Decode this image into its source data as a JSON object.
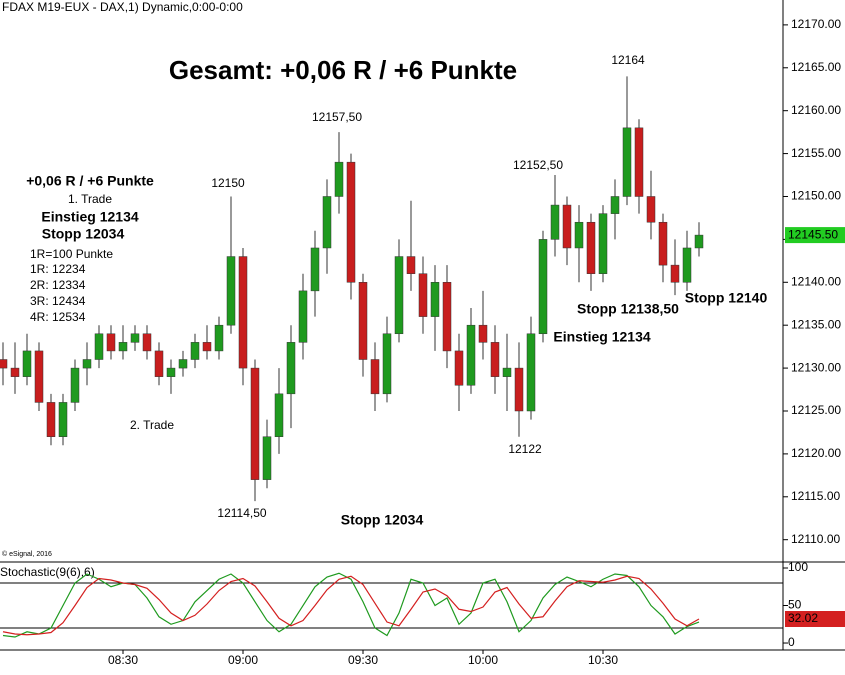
{
  "chart_data": [
    {
      "type": "candlestick",
      "header": "FDAX M19-EUX - DAX,1) Dynamic,0:00-0:00",
      "title": "Gesamt: +0,06 R / +6 Punkte",
      "credit": "© eSignal, 2016",
      "up_color": "#1f9a1f",
      "down_color": "#c81e1e",
      "wick_color": "#333333",
      "x": [
        480,
        483,
        486,
        489,
        492,
        495,
        498,
        501,
        504,
        507,
        510,
        513,
        516,
        519,
        522,
        525,
        528,
        531,
        534,
        537,
        540,
        543,
        546,
        549,
        552,
        555,
        558,
        561,
        564,
        567,
        570,
        573,
        576,
        579,
        582,
        585,
        588,
        591,
        594,
        597,
        600,
        603,
        606,
        609,
        612,
        615,
        618,
        621,
        624,
        627,
        630,
        633,
        636,
        639,
        642,
        645,
        648,
        651,
        654
      ],
      "open": [
        12131,
        12130,
        12129,
        12132,
        12126,
        12122,
        12126,
        12130,
        12131,
        12134,
        12132,
        12133,
        12134,
        12132,
        12129,
        12130,
        12131,
        12133,
        12132,
        12135,
        12143,
        12130,
        12117,
        12122,
        12127,
        12133,
        12139,
        12144,
        12150,
        12154,
        12140,
        12131,
        12127,
        12134,
        12143,
        12141,
        12136,
        12140,
        12132,
        12128,
        12135,
        12133,
        12129,
        12130,
        12125,
        12134,
        12145,
        12149,
        12144,
        12147,
        12141,
        12148,
        12150,
        12158,
        12150,
        12147,
        12142,
        12140,
        12144
      ],
      "high": [
        12133,
        12133,
        12134,
        12133,
        12127,
        12127,
        12131,
        12133,
        12135,
        12135,
        12135,
        12135,
        12135,
        12133,
        12131,
        12132,
        12134,
        12135,
        12136,
        12150,
        12144,
        12131,
        12124,
        12130,
        12135,
        12141,
        12146,
        12152,
        12157.5,
        12155,
        12141,
        12133,
        12136,
        12145,
        12149.5,
        12143,
        12142,
        12142,
        12134,
        12137,
        12139,
        12135,
        12134,
        12133,
        12136,
        12146,
        12152.5,
        12150,
        12149,
        12148,
        12149,
        12152,
        12164,
        12159,
        12153,
        12148,
        12145,
        12146,
        12147
      ],
      "low": [
        12128,
        12127,
        12128,
        12125,
        12121,
        12121,
        12125,
        12128,
        12130,
        12131,
        12131,
        12132,
        12131,
        12128,
        12127,
        12129,
        12130,
        12131,
        12131,
        12134,
        12128,
        12114.5,
        12116,
        12120,
        12123,
        12131,
        12136,
        12141,
        12148,
        12138,
        12129,
        12125,
        12126,
        12133,
        12139,
        12134,
        12132,
        12130,
        12125,
        12127,
        12131,
        12127,
        12125,
        12122,
        12124,
        12133,
        12143,
        12142,
        12140,
        12139,
        12140,
        12145,
        12149,
        12148,
        12145,
        12140,
        12138.5,
        12139,
        12143
      ],
      "close": [
        12130,
        12129,
        12132,
        12126,
        12122,
        12126,
        12130,
        12131,
        12134,
        12132,
        12133,
        12134,
        12132,
        12129,
        12130,
        12131,
        12133,
        12132,
        12135,
        12143,
        12130,
        12117,
        12122,
        12127,
        12133,
        12139,
        12144,
        12150,
        12154,
        12140,
        12131,
        12127,
        12134,
        12143,
        12141,
        12136,
        12140,
        12132,
        12128,
        12135,
        12133,
        12129,
        12130,
        12125,
        12134,
        12145,
        12149,
        12144,
        12147,
        12141,
        12148,
        12150,
        12158,
        12150,
        12147,
        12142,
        12140,
        12144,
        12145.5
      ],
      "last_price": {
        "value": 12145.5,
        "label": "12145.50"
      },
      "last_price_color": "#22cc22",
      "xlim": [
        479.25,
        675
      ],
      "ylim": [
        12107.4,
        12172.9
      ],
      "yticks": [
        {
          "value": 12110,
          "label": "12110.00"
        },
        {
          "value": 12115,
          "label": "12115.00"
        },
        {
          "value": 12120,
          "label": "12120.00"
        },
        {
          "value": 12125,
          "label": "12125.00"
        },
        {
          "value": 12130,
          "label": "12130.00"
        },
        {
          "value": 12135,
          "label": "12135.00"
        },
        {
          "value": 12140,
          "label": "12140.00"
        },
        {
          "value": 12145,
          "label": "12145.00"
        },
        {
          "value": 12150,
          "label": "12150.00"
        },
        {
          "value": 12155,
          "label": "12155.00"
        },
        {
          "value": 12160,
          "label": "12160.00"
        },
        {
          "value": 12165,
          "label": "12165.00"
        },
        {
          "value": 12170,
          "label": "12170.00"
        }
      ],
      "annotations": [
        {
          "text": "12164",
          "color": "#000000"
        },
        {
          "text": "12157,50",
          "color": "#000000"
        },
        {
          "text": "12150",
          "color": "#000000"
        },
        {
          "text": "12152,50",
          "color": "#000000"
        },
        {
          "text": "+0,06 R / +6 Punkte",
          "color": "#000000"
        },
        {
          "text": "1. Trade",
          "color": "#000000"
        },
        {
          "text": "Einstieg 12134",
          "color": "#1f8a1f"
        },
        {
          "text": "Stopp 12034",
          "color": "#1f8a1f"
        },
        {
          "text": "1R=100 Punkte",
          "color": "#000000"
        },
        {
          "text": "1R: 12234",
          "color": "#000000"
        },
        {
          "text": "2R: 12334",
          "color": "#000000"
        },
        {
          "text": "3R: 12434",
          "color": "#000000"
        },
        {
          "text": "4R: 12534",
          "color": "#000000"
        },
        {
          "text": "2. Trade",
          "color": "#000000"
        },
        {
          "text": "12114,50",
          "color": "#000000"
        },
        {
          "text": "Stopp 12034",
          "color": "#1f8a1f"
        },
        {
          "text": "12122",
          "color": "#000000"
        },
        {
          "text": "Stopp 12138,50",
          "color": "#1f8a1f"
        },
        {
          "text": "Einstieg 12134",
          "color": "#1f8a1f"
        },
        {
          "text": "Stopp 12140",
          "color": "#1f8a1f"
        }
      ]
    },
    {
      "type": "line",
      "title": "Stochastic(9(6),6)",
      "title_color": "#1f9a1f",
      "x": [
        480,
        483,
        486,
        489,
        492,
        495,
        498,
        501,
        504,
        507,
        510,
        513,
        516,
        519,
        522,
        525,
        528,
        531,
        534,
        537,
        540,
        543,
        546,
        549,
        552,
        555,
        558,
        561,
        564,
        567,
        570,
        573,
        576,
        579,
        582,
        585,
        588,
        591,
        594,
        597,
        600,
        603,
        606,
        609,
        612,
        615,
        618,
        621,
        624,
        627,
        630,
        633,
        636,
        639,
        642,
        645,
        648,
        651,
        654
      ],
      "series": [
        {
          "color": "#1f9a1f",
          "values": [
            10,
            8,
            15,
            12,
            20,
            50,
            80,
            92,
            85,
            75,
            80,
            78,
            60,
            35,
            25,
            30,
            55,
            70,
            85,
            92,
            80,
            55,
            30,
            15,
            25,
            50,
            75,
            88,
            93,
            85,
            55,
            20,
            10,
            40,
            85,
            80,
            50,
            60,
            25,
            40,
            80,
            85,
            55,
            15,
            30,
            60,
            78,
            88,
            82,
            75,
            85,
            92,
            90,
            75,
            50,
            35,
            12,
            22,
            28
          ]
        },
        {
          "color": "#d42020",
          "values": [
            15,
            12,
            11,
            12,
            14,
            27,
            50,
            74,
            86,
            84,
            80,
            78,
            73,
            58,
            40,
            30,
            37,
            52,
            70,
            82,
            86,
            76,
            55,
            33,
            23,
            30,
            50,
            71,
            85,
            89,
            78,
            53,
            28,
            23,
            45,
            68,
            72,
            63,
            45,
            42,
            48,
            68,
            74,
            52,
            33,
            35,
            56,
            75,
            83,
            82,
            81,
            84,
            89,
            86,
            72,
            53,
            32,
            23,
            32.02
          ]
        }
      ],
      "levels": [
        80,
        20
      ],
      "xlim": [
        479.25,
        675
      ],
      "ylim": [
        -9.3,
        108
      ],
      "yticks": [
        100,
        50,
        0
      ],
      "xticks": [
        {
          "value": 510,
          "label": "08:30"
        },
        {
          "value": 540,
          "label": "09:00"
        },
        {
          "value": 570,
          "label": "09:30"
        },
        {
          "value": 600,
          "label": "10:00"
        },
        {
          "value": 630,
          "label": "10:30"
        }
      ]
    }
  ]
}
